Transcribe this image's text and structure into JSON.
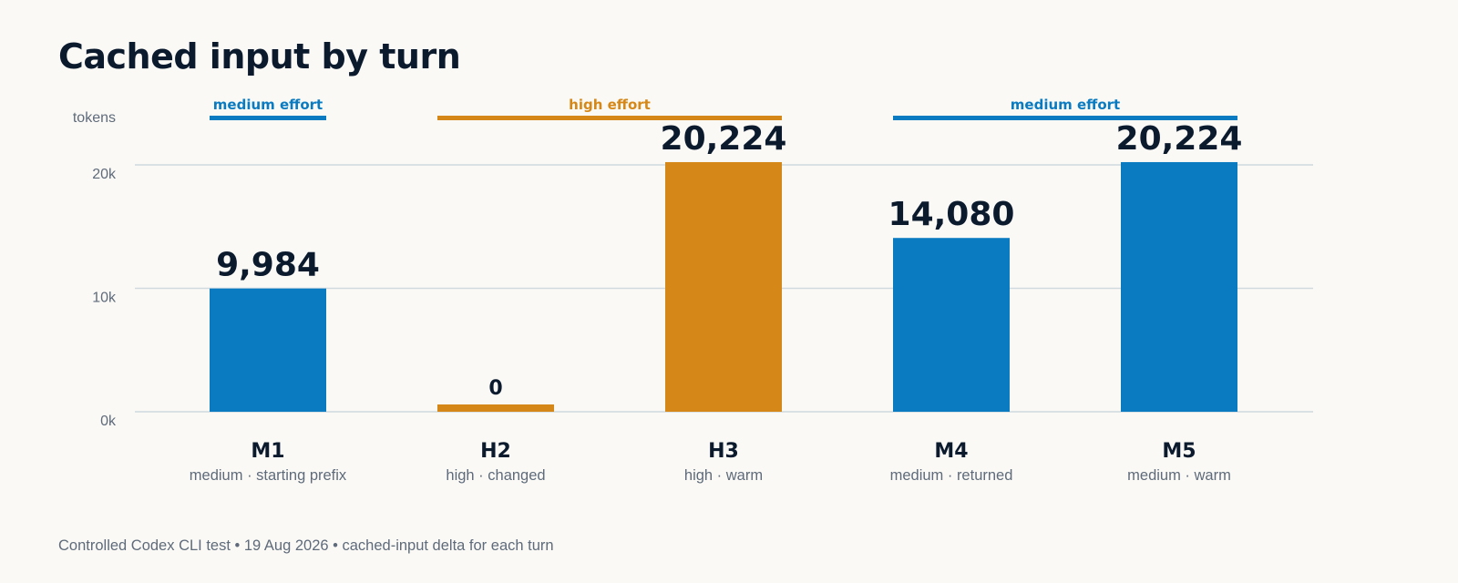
{
  "chart_data": {
    "type": "bar",
    "title": "Cached input by turn",
    "ylabel": "tokens",
    "ylim": [
      0,
      20000
    ],
    "yticks": [
      {
        "value": 0,
        "label": "0k"
      },
      {
        "value": 10000,
        "label": "10k"
      },
      {
        "value": 20000,
        "label": "20k"
      }
    ],
    "grid": true,
    "categories": [
      "M1",
      "H2",
      "H3",
      "M4",
      "M5"
    ],
    "subtitles": [
      "medium · starting prefix",
      "high · changed",
      "high · warm",
      "medium · returned",
      "medium · warm"
    ],
    "values": [
      9984,
      0,
      20224,
      14080,
      20224
    ],
    "value_labels": [
      "9,984",
      "0",
      "20,224",
      "14,080",
      "20,224"
    ],
    "effort": [
      "medium",
      "high",
      "high",
      "medium",
      "medium"
    ],
    "groups": [
      {
        "label": "medium effort",
        "effort": "medium",
        "from": 0,
        "to": 0
      },
      {
        "label": "high effort",
        "effort": "high",
        "from": 1,
        "to": 2
      },
      {
        "label": "medium effort",
        "effort": "medium",
        "from": 3,
        "to": 4
      }
    ],
    "colors": {
      "medium": "#0a7bc0",
      "high": "#d58817"
    }
  },
  "footnote": "Controlled Codex CLI test • 19 Aug 2026 • cached-input delta for each turn"
}
